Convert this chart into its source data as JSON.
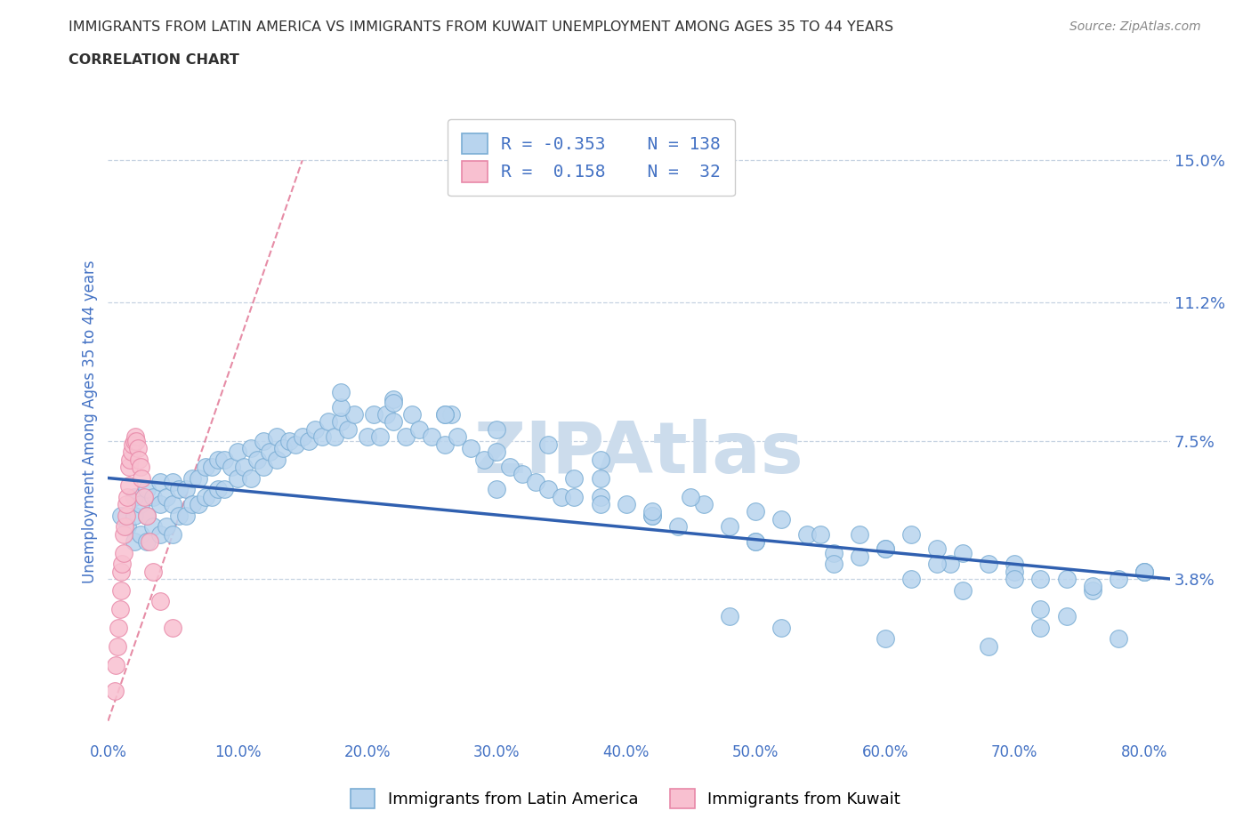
{
  "title_line1": "IMMIGRANTS FROM LATIN AMERICA VS IMMIGRANTS FROM KUWAIT UNEMPLOYMENT AMONG AGES 35 TO 44 YEARS",
  "title_line2": "CORRELATION CHART",
  "source_text": "Source: ZipAtlas.com",
  "ylabel": "Unemployment Among Ages 35 to 44 years",
  "xlim": [
    0.0,
    0.82
  ],
  "ylim": [
    -0.005,
    0.165
  ],
  "yticks": [
    0.038,
    0.075,
    0.112,
    0.15
  ],
  "ytick_labels": [
    "3.8%",
    "7.5%",
    "11.2%",
    "15.0%"
  ],
  "xticks": [
    0.0,
    0.1,
    0.2,
    0.3,
    0.4,
    0.5,
    0.6,
    0.7,
    0.8
  ],
  "xtick_labels": [
    "0.0%",
    "10.0%",
    "20.0%",
    "30.0%",
    "40.0%",
    "50.0%",
    "60.0%",
    "70.0%",
    "80.0%"
  ],
  "blue_R": -0.353,
  "blue_N": 138,
  "pink_R": 0.158,
  "pink_N": 32,
  "blue_color": "#b8d4ee",
  "blue_edge_color": "#7aadd4",
  "pink_color": "#f8c0d0",
  "pink_edge_color": "#e888a8",
  "trend_line_color": "#3060b0",
  "ref_line_color": "#e07090",
  "watermark_color": "#ccdcec",
  "title_color": "#303030",
  "axis_label_color": "#4472c4",
  "tick_label_color": "#4472c4",
  "legend_box_color_blue": "#b8d4ee",
  "legend_box_color_pink": "#f8c0d0",
  "blue_trend_x": [
    0.0,
    0.82
  ],
  "blue_trend_y": [
    0.065,
    0.038
  ],
  "ref_line_x": [
    0.0,
    0.15
  ],
  "ref_line_y": [
    0.0,
    0.15
  ],
  "blue_scatter_x": [
    0.01,
    0.015,
    0.02,
    0.02,
    0.02,
    0.025,
    0.025,
    0.03,
    0.03,
    0.03,
    0.035,
    0.035,
    0.04,
    0.04,
    0.04,
    0.045,
    0.045,
    0.05,
    0.05,
    0.05,
    0.055,
    0.055,
    0.06,
    0.06,
    0.065,
    0.065,
    0.07,
    0.07,
    0.075,
    0.075,
    0.08,
    0.08,
    0.085,
    0.085,
    0.09,
    0.09,
    0.095,
    0.1,
    0.1,
    0.105,
    0.11,
    0.11,
    0.115,
    0.12,
    0.12,
    0.125,
    0.13,
    0.13,
    0.135,
    0.14,
    0.145,
    0.15,
    0.155,
    0.16,
    0.165,
    0.17,
    0.175,
    0.18,
    0.185,
    0.19,
    0.2,
    0.205,
    0.21,
    0.215,
    0.22,
    0.23,
    0.235,
    0.24,
    0.25,
    0.26,
    0.265,
    0.27,
    0.28,
    0.29,
    0.3,
    0.31,
    0.32,
    0.33,
    0.34,
    0.35,
    0.36,
    0.38,
    0.4,
    0.42,
    0.44,
    0.46,
    0.48,
    0.5,
    0.52,
    0.54,
    0.56,
    0.58,
    0.6,
    0.62,
    0.64,
    0.66,
    0.68,
    0.7,
    0.72,
    0.74,
    0.76,
    0.78,
    0.8,
    0.18,
    0.22,
    0.26,
    0.3,
    0.34,
    0.38,
    0.18,
    0.22,
    0.26,
    0.38,
    0.45,
    0.5,
    0.55,
    0.6,
    0.65,
    0.7,
    0.38,
    0.42,
    0.5,
    0.58,
    0.64,
    0.7,
    0.76,
    0.8,
    0.48,
    0.52,
    0.6,
    0.68,
    0.72,
    0.78,
    0.3,
    0.36,
    0.42,
    0.56,
    0.62,
    0.66,
    0.72,
    0.74,
    0.8
  ],
  "blue_scatter_y": [
    0.055,
    0.052,
    0.048,
    0.055,
    0.06,
    0.05,
    0.058,
    0.048,
    0.055,
    0.062,
    0.052,
    0.06,
    0.05,
    0.058,
    0.064,
    0.052,
    0.06,
    0.05,
    0.058,
    0.064,
    0.055,
    0.062,
    0.055,
    0.062,
    0.058,
    0.065,
    0.058,
    0.065,
    0.06,
    0.068,
    0.06,
    0.068,
    0.062,
    0.07,
    0.062,
    0.07,
    0.068,
    0.065,
    0.072,
    0.068,
    0.065,
    0.073,
    0.07,
    0.068,
    0.075,
    0.072,
    0.07,
    0.076,
    0.073,
    0.075,
    0.074,
    0.076,
    0.075,
    0.078,
    0.076,
    0.08,
    0.076,
    0.08,
    0.078,
    0.082,
    0.076,
    0.082,
    0.076,
    0.082,
    0.08,
    0.076,
    0.082,
    0.078,
    0.076,
    0.074,
    0.082,
    0.076,
    0.073,
    0.07,
    0.072,
    0.068,
    0.066,
    0.064,
    0.062,
    0.06,
    0.065,
    0.06,
    0.058,
    0.055,
    0.052,
    0.058,
    0.052,
    0.048,
    0.054,
    0.05,
    0.045,
    0.05,
    0.046,
    0.05,
    0.046,
    0.045,
    0.042,
    0.042,
    0.038,
    0.038,
    0.035,
    0.038,
    0.04,
    0.084,
    0.086,
    0.082,
    0.078,
    0.074,
    0.07,
    0.088,
    0.085,
    0.082,
    0.065,
    0.06,
    0.056,
    0.05,
    0.046,
    0.042,
    0.04,
    0.058,
    0.055,
    0.048,
    0.044,
    0.042,
    0.038,
    0.036,
    0.04,
    0.028,
    0.025,
    0.022,
    0.02,
    0.025,
    0.022,
    0.062,
    0.06,
    0.056,
    0.042,
    0.038,
    0.035,
    0.03,
    0.028,
    0.04
  ],
  "pink_scatter_x": [
    0.005,
    0.006,
    0.007,
    0.008,
    0.009,
    0.01,
    0.01,
    0.011,
    0.012,
    0.012,
    0.013,
    0.014,
    0.014,
    0.015,
    0.016,
    0.016,
    0.017,
    0.018,
    0.019,
    0.02,
    0.021,
    0.022,
    0.023,
    0.024,
    0.025,
    0.026,
    0.028,
    0.03,
    0.032,
    0.035,
    0.04,
    0.05
  ],
  "pink_scatter_y": [
    0.008,
    0.015,
    0.02,
    0.025,
    0.03,
    0.035,
    0.04,
    0.042,
    0.045,
    0.05,
    0.052,
    0.055,
    0.058,
    0.06,
    0.063,
    0.068,
    0.07,
    0.072,
    0.074,
    0.075,
    0.076,
    0.075,
    0.073,
    0.07,
    0.068,
    0.065,
    0.06,
    0.055,
    0.048,
    0.04,
    0.032,
    0.025
  ]
}
